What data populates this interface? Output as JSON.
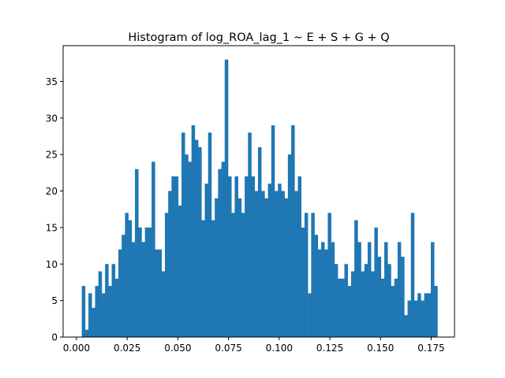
{
  "chart_data": {
    "type": "bar",
    "title": "Histogram of log_ROA_lag_1 ~ E + S + G + Q",
    "xlabel": "",
    "ylabel": "",
    "xlim": [
      -0.0066,
      0.1865
    ],
    "ylim": [
      0,
      39.9
    ],
    "x_ticks": [
      "0.000",
      "0.025",
      "0.050",
      "0.075",
      "0.100",
      "0.125",
      "0.150",
      "0.175"
    ],
    "y_ticks": [
      "0",
      "5",
      "10",
      "15",
      "20",
      "25",
      "30",
      "35"
    ],
    "bin_start": 0.0026,
    "bin_end": 0.1781,
    "bar_color": "#1f77b4",
    "values": [
      7,
      1,
      6,
      4,
      7,
      9,
      6,
      10,
      7,
      10,
      8,
      12,
      14,
      17,
      16,
      13,
      23,
      15,
      13,
      15,
      15,
      24,
      12,
      12,
      9,
      17,
      20,
      22,
      22,
      18,
      28,
      25,
      24,
      29,
      27,
      26,
      16,
      21,
      28,
      16,
      19,
      23,
      24,
      38,
      22,
      17,
      22,
      19,
      17,
      22,
      28,
      22,
      20,
      26,
      20,
      19,
      21,
      29,
      20,
      21,
      20,
      19,
      25,
      29,
      20,
      22,
      15,
      17,
      6,
      17,
      14,
      12,
      13,
      12,
      17,
      13,
      10,
      8,
      8,
      10,
      7,
      9,
      16,
      13,
      9,
      10,
      13,
      9,
      15,
      11,
      8,
      13,
      10,
      7,
      8,
      13,
      11,
      3,
      5,
      17,
      5,
      6,
      5,
      6,
      6,
      13,
      7
    ]
  }
}
